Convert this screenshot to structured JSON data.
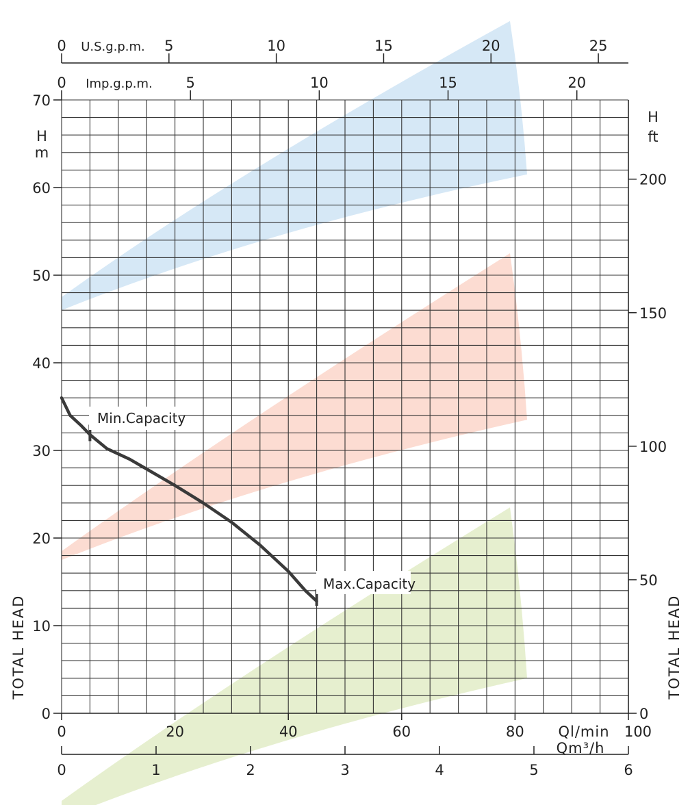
{
  "chart_data": {
    "type": "line",
    "axes": {
      "top_usgpm": {
        "label": "U.S.g.p.m.",
        "ticks": [
          0,
          5,
          10,
          15,
          20,
          25
        ],
        "range": [
          0,
          26.4
        ]
      },
      "top_impgpm": {
        "label": "Imp.g.p.m.",
        "ticks": [
          0,
          5,
          10,
          15,
          20
        ],
        "range": [
          0,
          22
        ]
      },
      "left_head_m": {
        "label_top": "H",
        "label_unit": "m",
        "ticks": [
          0,
          10,
          20,
          30,
          40,
          50,
          60,
          70
        ],
        "range": [
          0,
          70
        ]
      },
      "right_head_ft": {
        "label_top": "H",
        "label_unit": "ft",
        "ticks": [
          0,
          50,
          100,
          150,
          200
        ],
        "range": [
          0,
          230
        ]
      },
      "bottom_lmin": {
        "label": "Ql/min",
        "ticks": [
          0,
          20,
          40,
          60,
          80,
          100
        ],
        "range": [
          0,
          100
        ]
      },
      "bottom_m3h": {
        "label": "Qm³/h",
        "ticks": [
          0,
          1,
          2,
          3,
          4,
          5,
          6
        ],
        "range": [
          0,
          6
        ]
      }
    },
    "side_label": "TOTAL HEAD",
    "grid": true,
    "series": [
      {
        "x_lmin": [
          0,
          1.5,
          3.5,
          5,
          8,
          12,
          16,
          20,
          25,
          30,
          35,
          40,
          43,
          45
        ],
        "y_m": [
          36,
          34,
          32.8,
          31.8,
          30.2,
          29,
          27.5,
          26,
          24,
          21.8,
          19.2,
          16.2,
          14,
          12.8
        ],
        "color": "#3a3a3a"
      }
    ],
    "annotations": [
      {
        "text": "Min.Capacity",
        "x_lmin": 5,
        "y_m": 32
      },
      {
        "text": "Max.Capacity",
        "x_lmin": 45,
        "y_m": 13.2
      }
    ],
    "bands": [
      {
        "color": "#d6e8f6",
        "lower_y_m": [
          46,
          61.5
        ],
        "upper_y_m": [
          47.5,
          79
        ]
      },
      {
        "color": "#fcdcd2",
        "lower_y_m": [
          17.5,
          33.5
        ],
        "upper_y_m": [
          18.5,
          52.5
        ]
      },
      {
        "color": "#e6efcf",
        "lower_y_m": [
          -12,
          4
        ],
        "upper_y_m": [
          -10,
          23.5
        ]
      }
    ]
  }
}
